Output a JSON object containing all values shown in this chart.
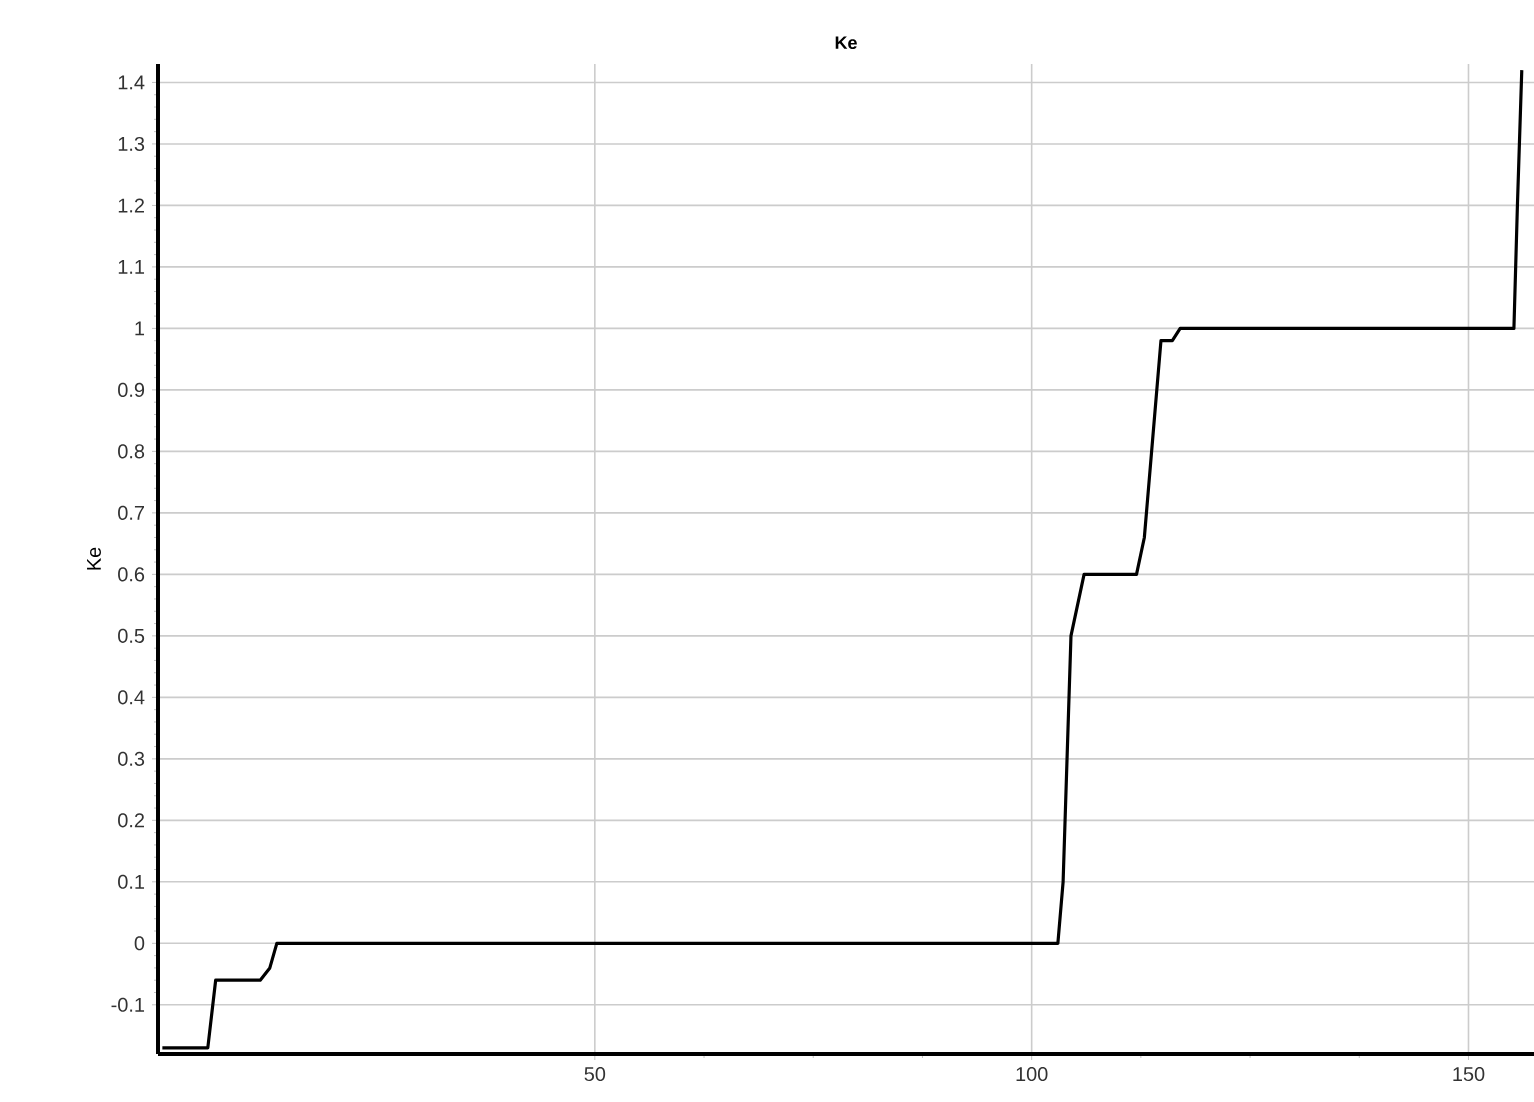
{
  "chart_data": {
    "type": "line",
    "title": "Ke",
    "ylabel": "Ke",
    "series": [
      {
        "color": "#000000",
        "x": [
          0.5,
          5.7,
          6.6,
          11.7,
          12.8,
          13.6,
          103,
          103.6,
          104.5,
          106,
          112,
          112.9,
          114.8,
          116.1,
          117,
          155.2,
          155.6,
          156.1
        ],
        "values": [
          -0.17,
          -0.17,
          -0.06,
          -0.06,
          -0.04,
          0,
          0,
          0.1,
          0.5,
          0.6,
          0.6,
          0.66,
          0.98,
          0.98,
          1.0,
          1.0,
          1.2,
          1.42
        ]
      }
    ],
    "xlim": [
      0,
      157.5
    ],
    "ylim": [
      -0.18,
      1.43
    ],
    "xticks": [
      50,
      100,
      150
    ],
    "yticks": [
      -0.1,
      0,
      0.1,
      0.2,
      0.3,
      0.4,
      0.5,
      0.6,
      0.7,
      0.8,
      0.9,
      1,
      1.1,
      1.2,
      1.3,
      1.4
    ],
    "grid": true,
    "marker": "none",
    "line_style": "solid"
  }
}
